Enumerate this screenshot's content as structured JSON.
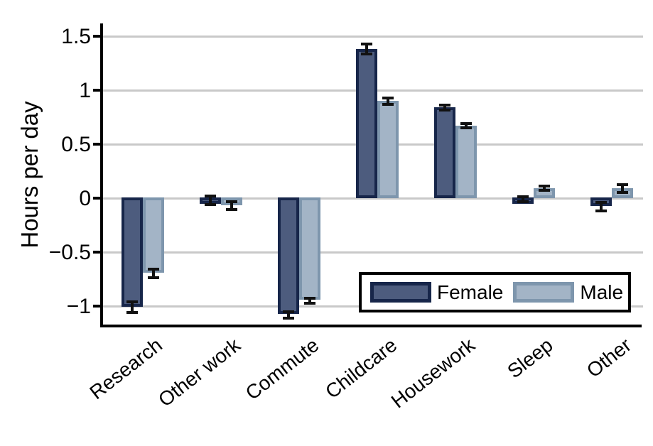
{
  "chart_data": {
    "type": "bar",
    "title": "",
    "xlabel": "",
    "ylabel": "Hours per day",
    "categories": [
      "Research",
      "Other work",
      "Commute",
      "Childcare",
      "Housework",
      "Sleep",
      "Other"
    ],
    "series": [
      {
        "name": "Female",
        "color": "#4d5c7e",
        "border_color": "#17264a",
        "values": [
          -1.01,
          -0.02,
          -1.08,
          1.38,
          0.84,
          -0.01,
          -0.08
        ],
        "errors": [
          0.05,
          0.04,
          0.03,
          0.045,
          0.025,
          0.025,
          0.04
        ]
      },
      {
        "name": "Male",
        "color": "#a3b4c6",
        "border_color": "#7e96ad",
        "values": [
          -0.7,
          -0.07,
          -0.95,
          0.9,
          0.67,
          0.09,
          0.09
        ],
        "errors": [
          0.04,
          0.035,
          0.025,
          0.03,
          0.02,
          0.02,
          0.035
        ]
      }
    ],
    "y_axis": {
      "ticks": [
        1.5,
        1,
        0.5,
        0,
        -0.5,
        -1
      ],
      "tick_labels": [
        "1.5",
        "1",
        "0.5",
        "0",
        "−0.5",
        "−1"
      ],
      "range": [
        -1.18,
        1.6
      ]
    },
    "grid": true,
    "error_bars": true,
    "legend": {
      "position": "inside-bottom-right",
      "entries": [
        "Female",
        "Male"
      ]
    },
    "colors": {
      "gridline": "#c9c9c9",
      "axis": "#000000",
      "error_bar": "#111111",
      "background": "#ffffff",
      "text": "#000000"
    }
  }
}
